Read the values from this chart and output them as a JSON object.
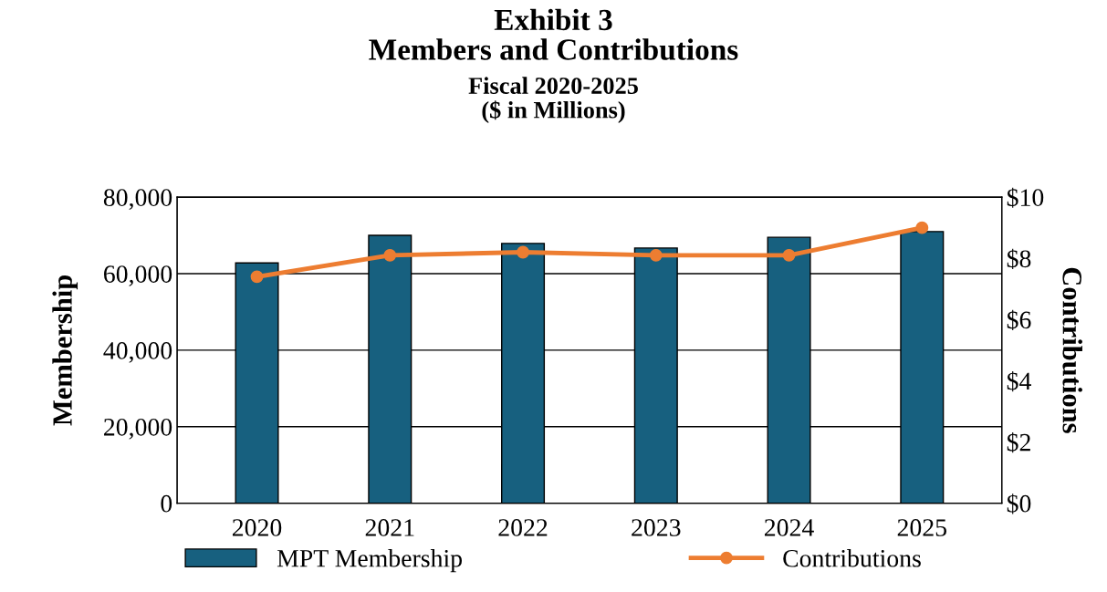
{
  "chart_data": {
    "type": "bar",
    "title": "Exhibit 3\nMembers and Contributions",
    "subtitle": "Fiscal 2020-2025\n($ in Millions)",
    "categories": [
      "2020",
      "2021",
      "2022",
      "2023",
      "2024",
      "2025"
    ],
    "series": [
      {
        "name": "MPT Membership",
        "color": "#17607f",
        "values": [
          62800,
          70000,
          67900,
          66700,
          69500,
          71000
        ]
      },
      {
        "name": "Contributions",
        "type": "line",
        "axis": "y2",
        "color": "#ed7d31",
        "values": [
          7.4,
          8.1,
          8.2,
          8.1,
          8.1,
          9.0
        ]
      }
    ],
    "ylabel": "Membership",
    "y2label": "Contributions",
    "ylim": [
      0,
      80000
    ],
    "yticks": [
      {
        "value": 0,
        "label": "0"
      },
      {
        "value": 20000,
        "label": "20,000"
      },
      {
        "value": 40000,
        "label": "40,000"
      },
      {
        "value": 60000,
        "label": "60,000"
      },
      {
        "value": 80000,
        "label": "80,000"
      }
    ],
    "y2lim": [
      0,
      10
    ],
    "y2ticks": [
      {
        "value": 0,
        "label": "$0"
      },
      {
        "value": 2,
        "label": "$2"
      },
      {
        "value": 4,
        "label": "$4"
      },
      {
        "value": 6,
        "label": "$6"
      },
      {
        "value": 8,
        "label": "$8"
      },
      {
        "value": 10,
        "label": "$10"
      }
    ],
    "grid": "y",
    "legend": "bottom",
    "marker": "circle",
    "line_style": "solid"
  }
}
